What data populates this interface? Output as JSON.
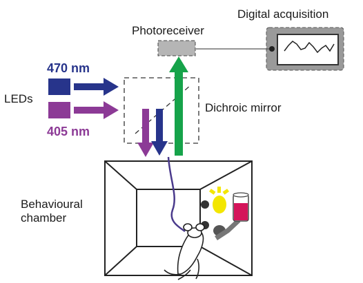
{
  "labels": {
    "digital_acquisition": "Digital acquisition",
    "photoreceiver": "Photoreceiver",
    "leds": "LEDs",
    "nm_470": "470 nm",
    "nm_405": "405 nm",
    "dichroic_mirror": "Dichroic mirror",
    "behavioural_chamber_line1": "Behavioural",
    "behavioural_chamber_line2": "chamber"
  },
  "colors": {
    "blue_470": "#27348b",
    "purple_405": "#8c3a96",
    "green_emission": "#16a34a",
    "fiber": "#4a3a8c",
    "cue_light": "#f3e600",
    "liquid": "#d4145a"
  }
}
